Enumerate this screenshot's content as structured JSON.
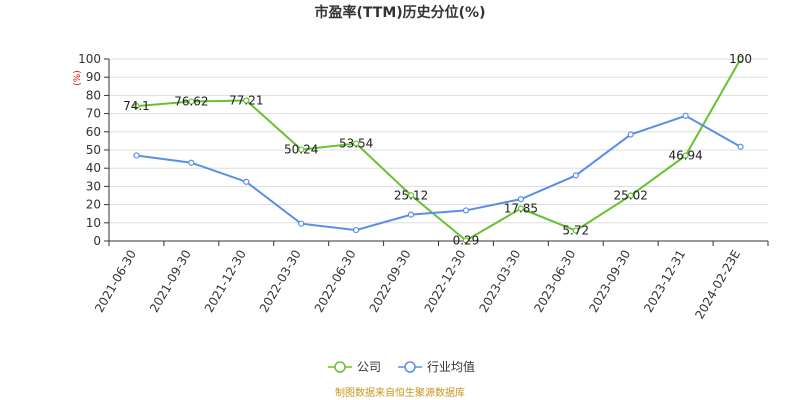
{
  "chart_data": {
    "type": "line",
    "title": "市盈率(TTM)历史分位(%)",
    "ylabel": "(%)",
    "ylim": [
      0,
      100
    ],
    "yticks": [
      0,
      10,
      20,
      30,
      40,
      50,
      60,
      70,
      80,
      90,
      100
    ],
    "categories": [
      "2021-06-30",
      "2021-09-30",
      "2021-12-30",
      "2022-03-30",
      "2022-06-30",
      "2022-09-30",
      "2022-12-30",
      "2023-03-30",
      "2023-06-30",
      "2023-09-30",
      "2023-12-31",
      "2024-02-23E"
    ],
    "series": [
      {
        "name": "公司",
        "color": "#66c22e",
        "values": [
          74.1,
          76.62,
          77.21,
          50.24,
          53.54,
          25.12,
          0.29,
          17.85,
          5.72,
          25.02,
          46.94,
          100
        ],
        "labels": [
          "74.1",
          "76.62",
          "77.21",
          "50.24",
          "53.54",
          "25.12",
          "0.29",
          "17.85",
          "5.72",
          "25.02",
          "46.94",
          "100"
        ]
      },
      {
        "name": "行业均值",
        "color": "#5b8ee6",
        "values": [
          47,
          43,
          32.5,
          9.5,
          6,
          14.5,
          16.8,
          23,
          36,
          58.5,
          68.8,
          51.8
        ]
      }
    ],
    "grid": true,
    "legend": "bottom-center",
    "source": "制图数据来自恒生聚源数据库"
  }
}
